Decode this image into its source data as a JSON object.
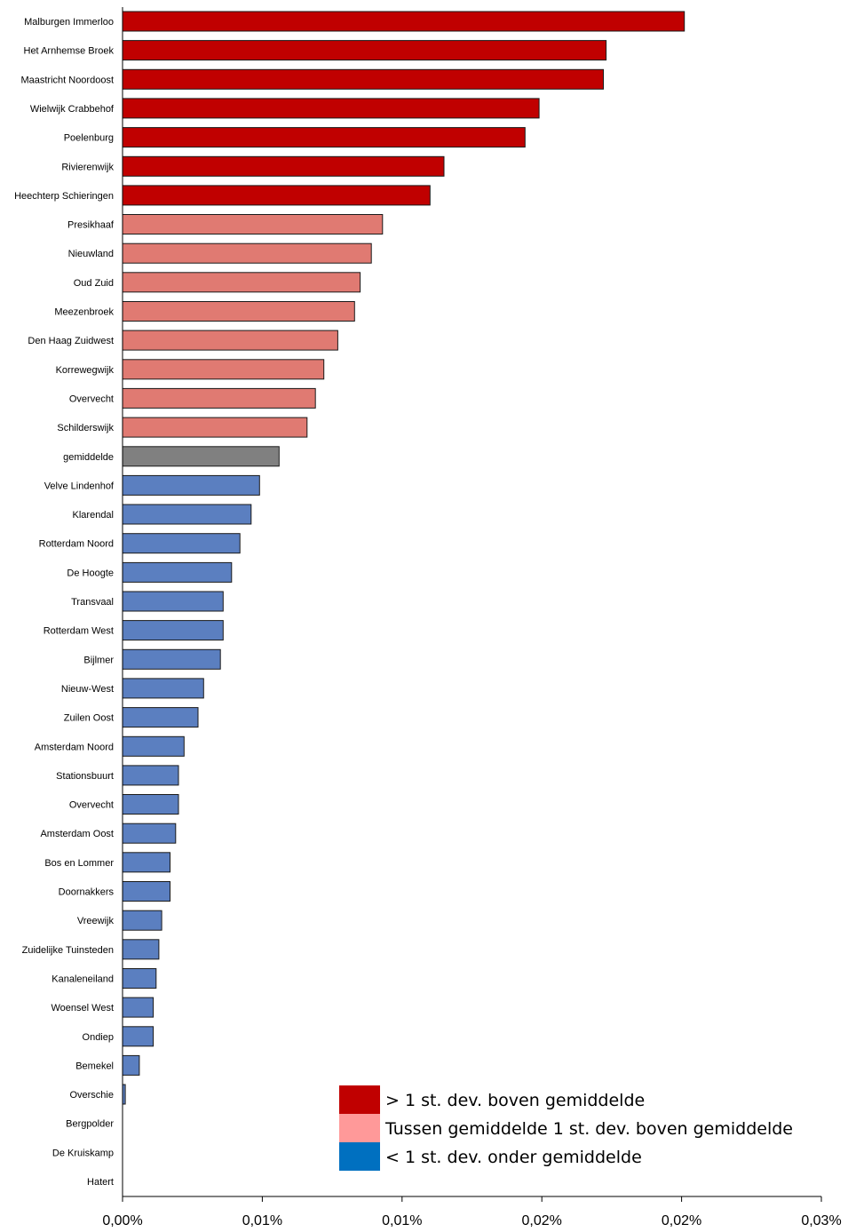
{
  "chart_data": {
    "type": "bar",
    "orientation": "horizontal",
    "categories": [
      "Malburgen Immerloo",
      "Het Arnhemse Broek",
      "Maastricht Noordoost",
      "Wielwijk Crabbehof",
      "Poelenburg",
      "Rivierenwijk",
      "Heechterp Schieringen",
      "Presikhaaf",
      "Nieuwland",
      "Oud Zuid",
      "Meezenbroek",
      "Den Haag Zuidwest",
      "Korrewegwijk",
      "Overvecht",
      "Schilderswijk",
      "gemiddelde",
      "Velve Lindenhof",
      "Klarendal",
      "Rotterdam Noord",
      "De Hoogte",
      "Transvaal",
      "Rotterdam West",
      "Bijlmer",
      "Nieuw-West",
      "Zuilen Oost",
      "Amsterdam Noord",
      "Stationsbuurt",
      "Overvecht",
      "Amsterdam Oost",
      "Bos en Lommer",
      "Doornakkers",
      "Vreewijk",
      "Zuidelijke Tuinsteden",
      "Kanaleneiland",
      "Woensel West",
      "Ondiep",
      "Bemekel",
      "Overschie",
      "Bergpolder",
      "De Kruiskamp",
      "Hatert"
    ],
    "values": [
      0.0201,
      0.0173,
      0.0172,
      0.0149,
      0.0144,
      0.0115,
      0.011,
      0.0093,
      0.0089,
      0.0085,
      0.0083,
      0.0077,
      0.0072,
      0.0069,
      0.0066,
      0.0056,
      0.0049,
      0.0046,
      0.0042,
      0.0039,
      0.0036,
      0.0036,
      0.0035,
      0.0029,
      0.0027,
      0.0022,
      0.002,
      0.002,
      0.0019,
      0.0017,
      0.0017,
      0.0014,
      0.0013,
      0.0012,
      0.0011,
      0.0011,
      0.0006,
      0.0001,
      0.0,
      0.0,
      0.0
    ],
    "groups": [
      "high",
      "high",
      "high",
      "high",
      "high",
      "high",
      "high",
      "mid",
      "mid",
      "mid",
      "mid",
      "mid",
      "mid",
      "mid",
      "mid",
      "avg",
      "low",
      "low",
      "low",
      "low",
      "low",
      "low",
      "low",
      "low",
      "low",
      "low",
      "low",
      "low",
      "low",
      "low",
      "low",
      "low",
      "low",
      "low",
      "low",
      "low",
      "low",
      "low",
      "low",
      "low",
      "low"
    ],
    "group_colors": {
      "high": "#c00000",
      "mid": "#e07a72",
      "avg": "#808080",
      "low": "#5b7fc0"
    },
    "xlim": [
      0,
      0.025
    ],
    "x_ticks": [
      0,
      0.005,
      0.01,
      0.015,
      0.02,
      0.025
    ],
    "x_tick_labels": [
      "0,00%",
      "0,01%",
      "0,01%",
      "0,02%",
      "0,02%",
      "0,03%"
    ],
    "title": "",
    "xlabel": "",
    "ylabel": "",
    "grid": false,
    "legend_position": "bottom-right",
    "legend": [
      {
        "label": "> 1 st. dev. boven gemiddelde",
        "color": "#c00000"
      },
      {
        "label": "Tussen gemiddelde  1 st. dev. boven gemiddelde",
        "color": "#ff9999"
      },
      {
        "label": "< 1 st. dev. onder gemiddelde",
        "color": "#0070c0"
      }
    ]
  }
}
